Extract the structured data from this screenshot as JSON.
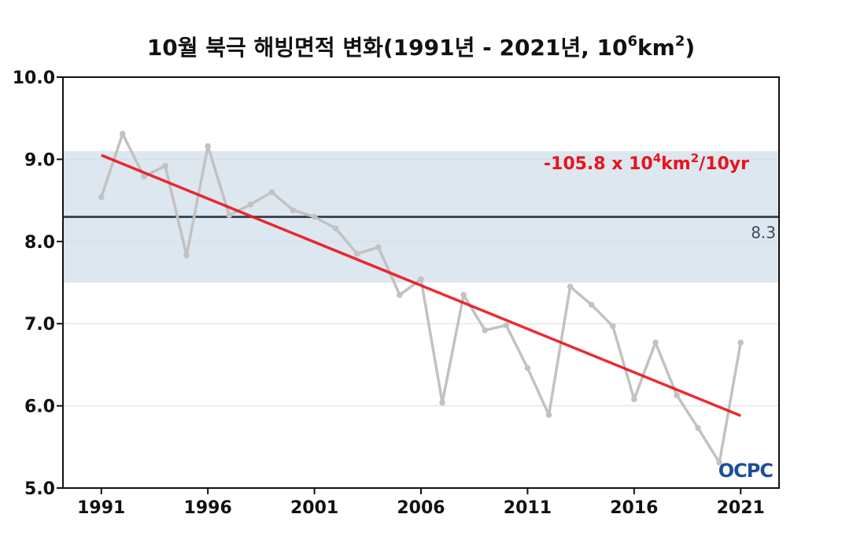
{
  "chart_data": {
    "type": "line",
    "title": {
      "main": "10월 북극 해빙면적 변화(1991년 - 2021년, 10",
      "exp1": "6",
      "mid": "km",
      "exp2": "2",
      "end": ")"
    },
    "xlabel": "",
    "ylabel": "",
    "xlim": [
      1989.2,
      2022.8
    ],
    "ylim": [
      5.0,
      10.0
    ],
    "x_ticks": [
      1991,
      1996,
      2001,
      2006,
      2011,
      2016,
      2021
    ],
    "y_ticks": [
      5.0,
      6.0,
      7.0,
      8.0,
      9.0,
      10.0
    ],
    "y_tick_labels": [
      "5.0",
      "6.0",
      "7.0",
      "8.0",
      "9.0",
      "10.0"
    ],
    "grid": true,
    "series": [
      {
        "color": "#c2c2c2",
        "x": [
          1991,
          1992,
          1993,
          1994,
          1995,
          1996,
          1997,
          1998,
          1999,
          2000,
          2001,
          2002,
          2003,
          2004,
          2005,
          2006,
          2007,
          2008,
          2009,
          2010,
          2011,
          2012,
          2013,
          2014,
          2015,
          2016,
          2017,
          2018,
          2019,
          2020,
          2021
        ],
        "values": [
          8.54,
          9.31,
          8.79,
          8.92,
          7.83,
          9.16,
          8.32,
          8.45,
          8.6,
          8.38,
          8.3,
          8.16,
          7.85,
          7.93,
          7.35,
          7.54,
          6.04,
          7.35,
          6.92,
          6.98,
          6.46,
          5.89,
          7.45,
          7.23,
          6.97,
          6.08,
          6.77,
          6.13,
          5.73,
          5.31,
          6.77
        ]
      }
    ],
    "normal_band": {
      "low": 7.5,
      "high": 9.1,
      "color": "#dde7f0"
    },
    "mean_line": {
      "value": 8.3,
      "label": "8.3",
      "color": "#3f4a57"
    },
    "trend_line": {
      "x_start": 1991,
      "y_start": 9.05,
      "x_end": 2021,
      "y_end": 5.88,
      "color": "#e8141c",
      "label": {
        "main": "-105.8 x 10",
        "exp1": "4",
        "mid": "km",
        "exp2": "2",
        "end": "/10yr"
      }
    },
    "logo": {
      "text": "OCPC",
      "color": "#1f4e9b"
    }
  }
}
